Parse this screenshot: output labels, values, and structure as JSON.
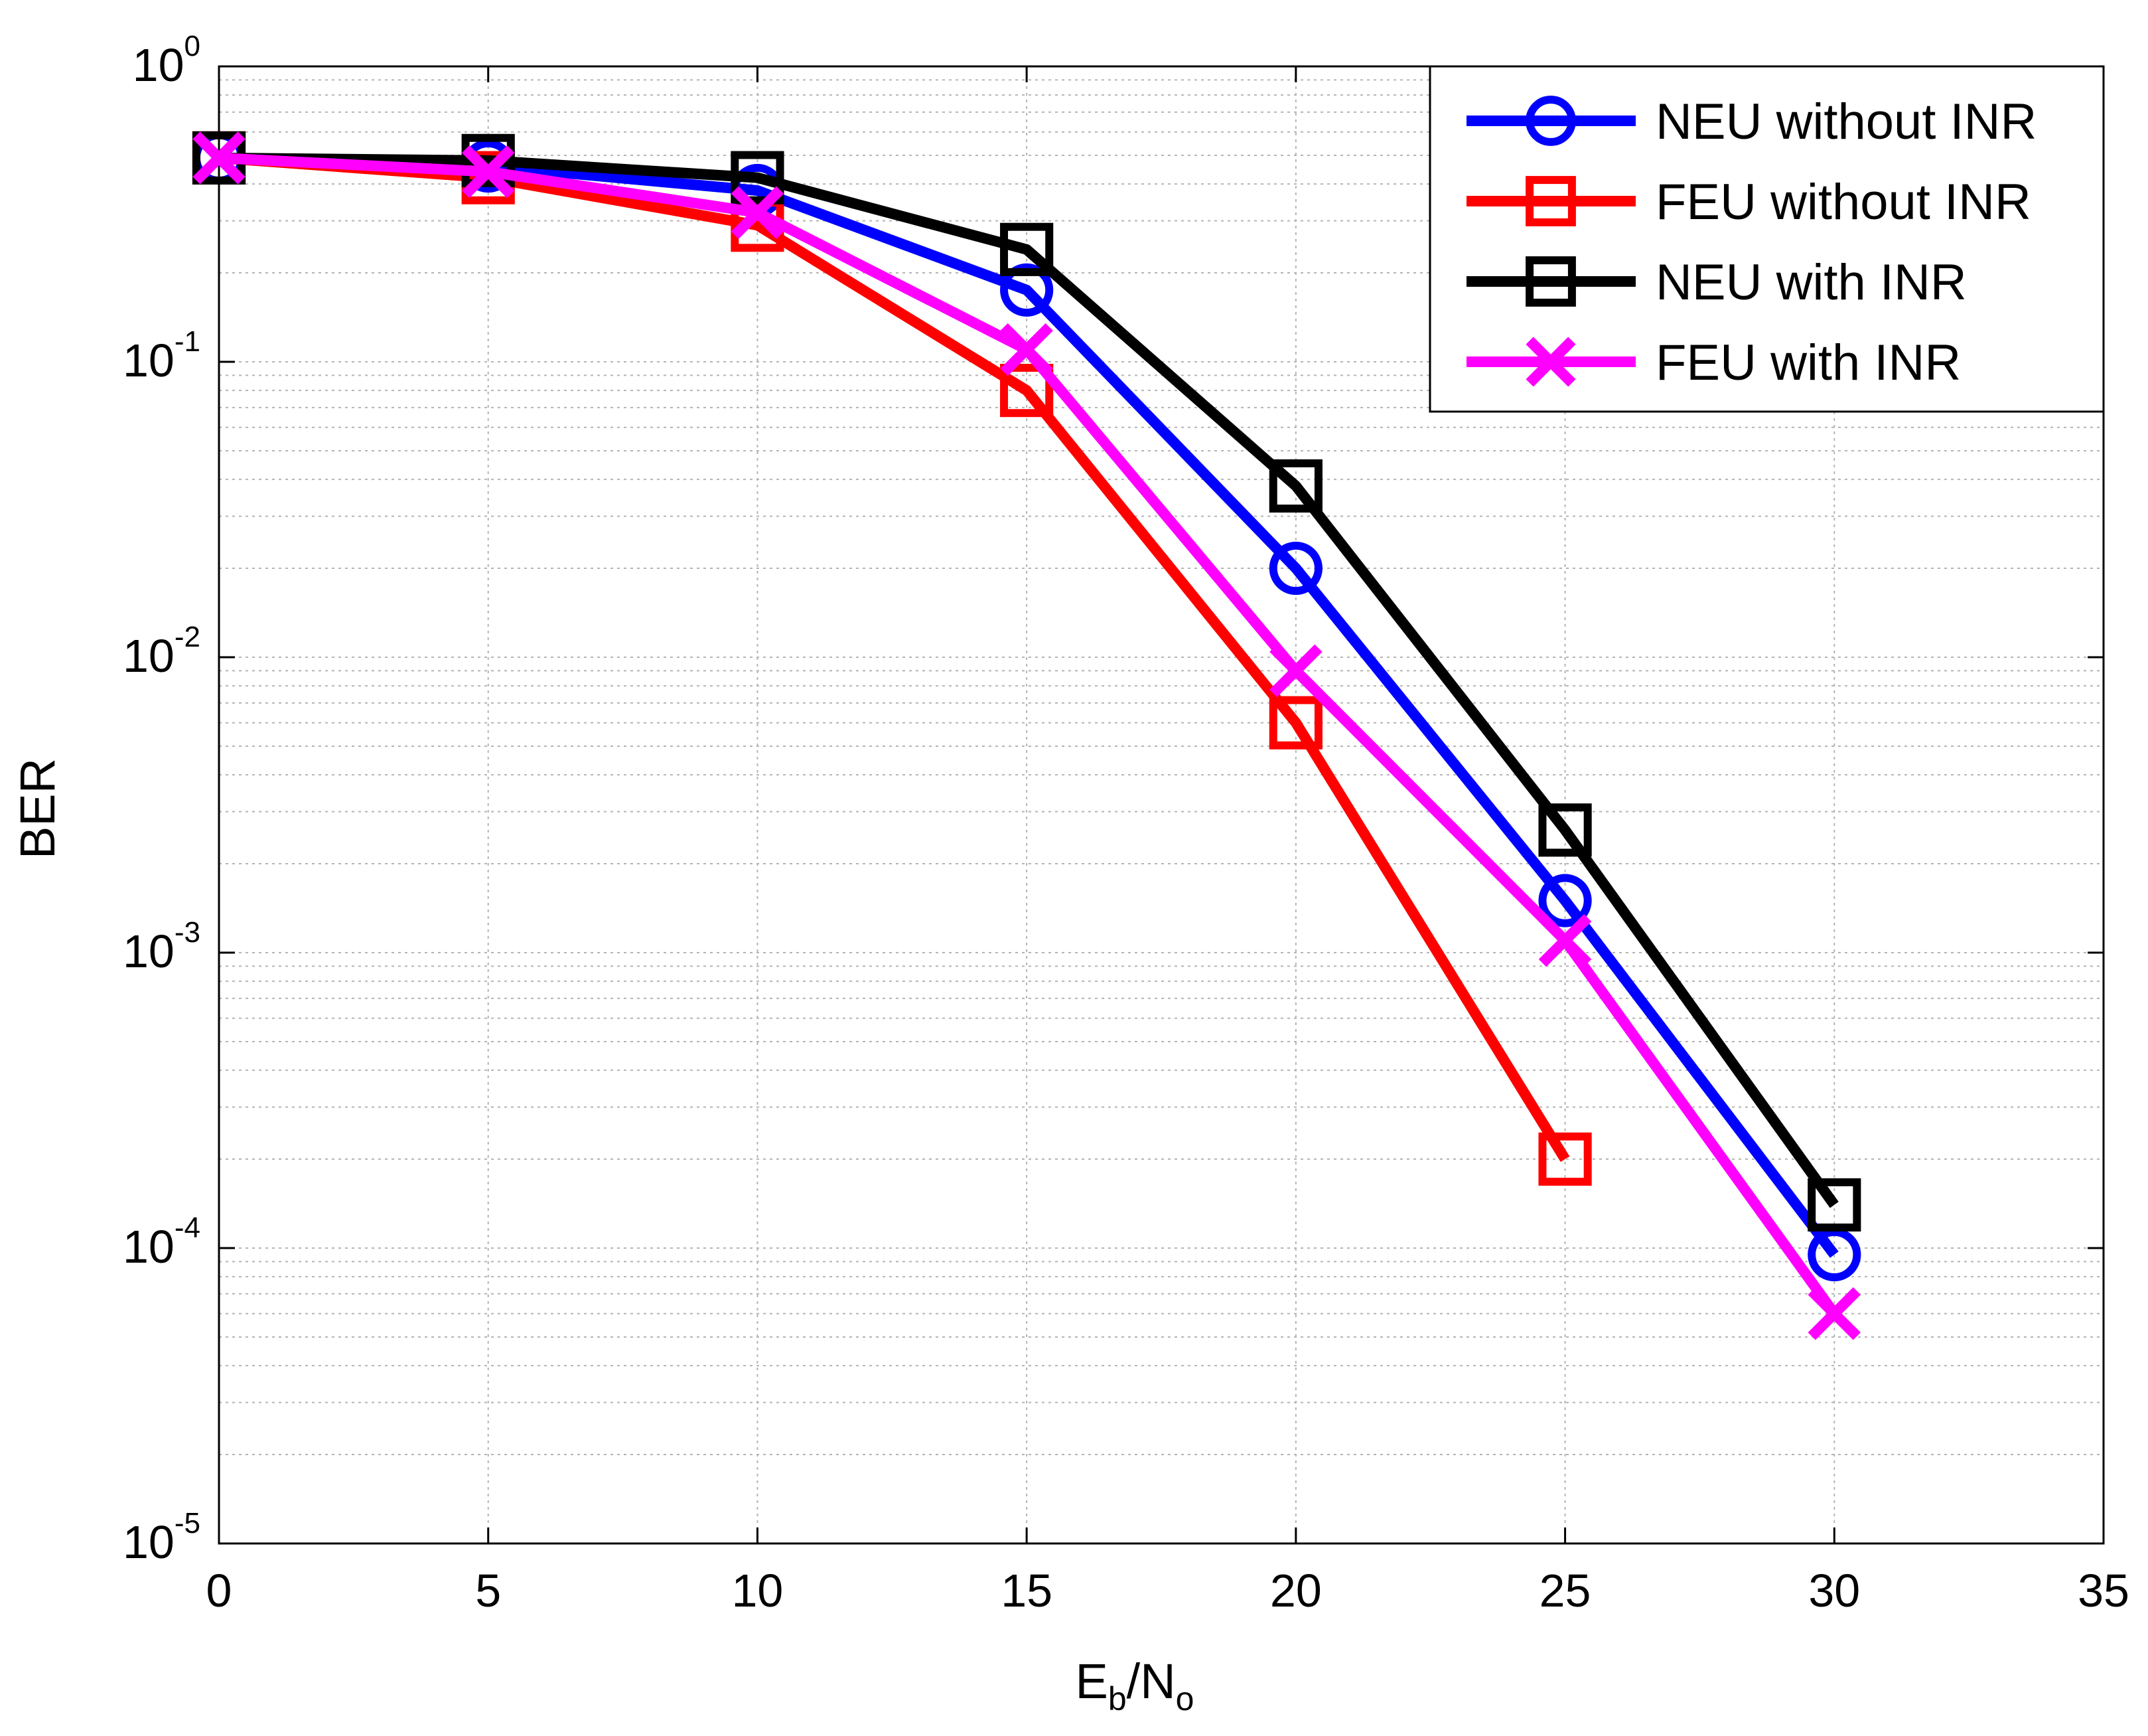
{
  "chart_data": {
    "type": "line",
    "title": "",
    "xlabel": {
      "main": "E",
      "sub1": "b",
      "mid": "/N",
      "sub2": "o"
    },
    "ylabel": "BER",
    "xscale": "linear",
    "yscale": "log",
    "xlim": [
      0,
      35
    ],
    "ylim": [
      1e-05,
      1
    ],
    "xticks": [
      0,
      5,
      10,
      15,
      20,
      25,
      30,
      35
    ],
    "xtick_labels": [
      "0",
      "5",
      "10",
      "15",
      "20",
      "25",
      "30",
      "35"
    ],
    "yticks": [
      {
        "value": 1,
        "base": "10",
        "exp": "0"
      },
      {
        "value": 0.1,
        "base": "10",
        "exp": "-1"
      },
      {
        "value": 0.01,
        "base": "10",
        "exp": "-2"
      },
      {
        "value": 0.001,
        "base": "10",
        "exp": "-3"
      },
      {
        "value": 0.0001,
        "base": "10",
        "exp": "-4"
      },
      {
        "value": 1e-05,
        "base": "10",
        "exp": "-5"
      }
    ],
    "grid": true,
    "legend_position": "top-right",
    "series": [
      {
        "name": "NEU without INR",
        "color": "#0000ff",
        "marker": "circle",
        "x": [
          0,
          5,
          10,
          15,
          20,
          25,
          30
        ],
        "y": [
          0.49,
          0.46,
          0.38,
          0.175,
          0.02,
          0.0015,
          9.5e-05
        ]
      },
      {
        "name": "FEU without INR",
        "color": "#ff0000",
        "marker": "square",
        "x": [
          0,
          5,
          10,
          15,
          20,
          25
        ],
        "y": [
          0.49,
          0.42,
          0.29,
          0.08,
          0.006,
          0.0002
        ]
      },
      {
        "name": "NEU with INR",
        "color": "#000000",
        "marker": "square",
        "x": [
          0,
          5,
          10,
          15,
          20,
          25,
          30
        ],
        "y": [
          0.49,
          0.48,
          0.42,
          0.24,
          0.038,
          0.0026,
          0.00014
        ]
      },
      {
        "name": "FEU with INR",
        "color": "#ff00ff",
        "marker": "x",
        "x": [
          0,
          5,
          10,
          15,
          20,
          25,
          30
        ],
        "y": [
          0.49,
          0.44,
          0.32,
          0.11,
          0.009,
          0.0011,
          6e-05
        ]
      }
    ]
  }
}
